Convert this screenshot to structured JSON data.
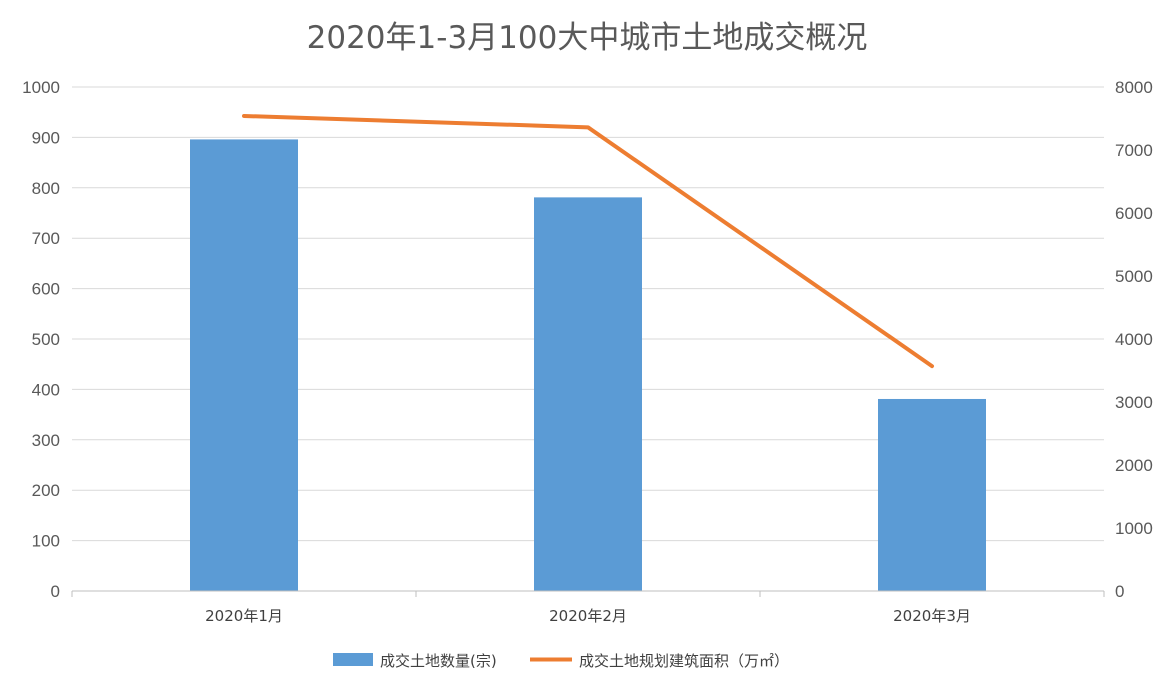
{
  "chart_data": {
    "type": "bar",
    "title": "2020年1-3月100大中城市土地成交概况",
    "categories": [
      "2020年1月",
      "2020年2月",
      "2020年3月"
    ],
    "series": [
      {
        "name": "成交土地数量(宗)",
        "type": "bar",
        "axis": "left",
        "color": "#5b9bd5",
        "values": [
          896,
          781,
          381
        ]
      },
      {
        "name": "成交土地规划建筑面积（万㎡）",
        "type": "line",
        "axis": "right",
        "color": "#ed7d31",
        "values": [
          7540,
          7360,
          3570
        ]
      }
    ],
    "y_left": {
      "min": 0,
      "max": 1000,
      "step": 100,
      "ticks": [
        "0",
        "100",
        "200",
        "300",
        "400",
        "500",
        "600",
        "700",
        "800",
        "900",
        "1000"
      ]
    },
    "y_right": {
      "min": 0,
      "max": 8000,
      "step": 1000,
      "ticks": [
        "0",
        "1000",
        "2000",
        "3000",
        "4000",
        "5000",
        "6000",
        "7000",
        "8000"
      ]
    },
    "grid": true,
    "legend": "bottom"
  }
}
